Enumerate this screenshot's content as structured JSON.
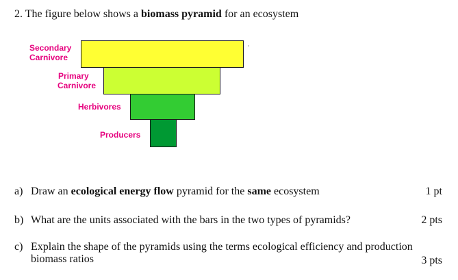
{
  "question": {
    "number": "2.",
    "intro_pre": "The figure below shows a",
    "intro_bold": "biomass pyramid",
    "intro_post": "for an ecosystem"
  },
  "pyramid": {
    "levels": [
      {
        "label_line1": "Secondary",
        "label_line2": "Carnivore",
        "fill": "#ffff33"
      },
      {
        "label_line1": "Primary",
        "label_line2": "Carnivore",
        "fill": "#ccff33"
      },
      {
        "label_line1": "Herbivores",
        "fill": "#33cc33"
      },
      {
        "label_line1": "Producers",
        "fill": "#009933"
      }
    ],
    "label_color": "#e6007e"
  },
  "parts": [
    {
      "letter": "a)",
      "text_pre": "Draw an",
      "text_bold1": "ecological energy flow",
      "text_mid": "pyramid for the",
      "text_bold2": "same",
      "text_post": "ecosystem",
      "points": "1 pt"
    },
    {
      "letter": "b)",
      "text": "What are the units associated with the bars in the two types of pyramids?",
      "points": "2 pts"
    },
    {
      "letter": "c)",
      "text_line1": "Explain the shape of the pyramids using the terms ecological efficiency and production",
      "text_line2": "biomass ratios",
      "points": "3 pts"
    }
  ]
}
